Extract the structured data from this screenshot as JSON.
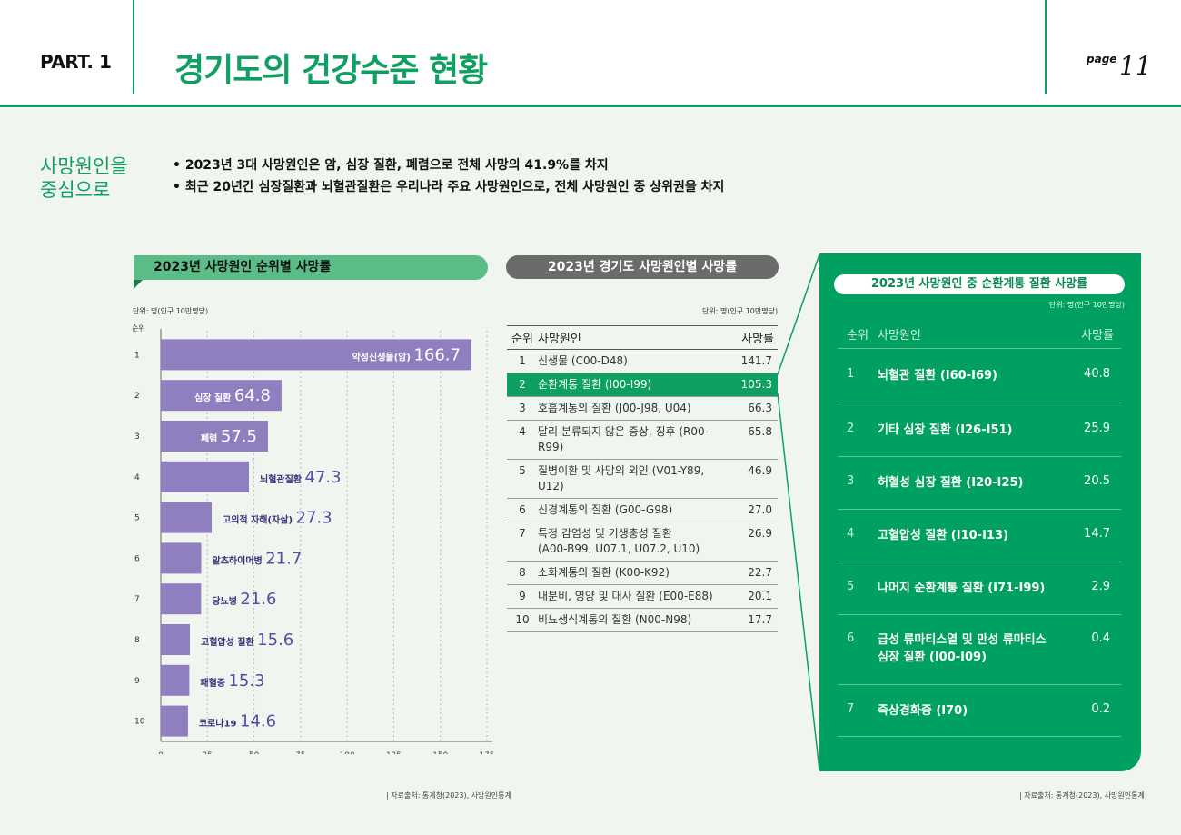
{
  "header": {
    "part": "PART. 1",
    "title": "경기도의 건강수준 현황",
    "page_label": "page",
    "page_number": "11"
  },
  "intro": {
    "heading_line1": "사망원인을",
    "heading_line2": "중심으로",
    "bullets": [
      "2023년 3대 사망원인은 암, 심장 질환, 폐렴으로 전체 사망의 41.9%를 차지",
      "최근 20년간 심장질환과 뇌혈관질환은 우리나라 주요 사망원인으로, 전체 사망원인 중 상위권을 차지"
    ]
  },
  "left_section": {
    "title": "2023년 사망원인 순위별 사망률",
    "unit": "단위: 명(인구 10만명당)",
    "rank_label": "순위"
  },
  "chart_data": {
    "type": "bar",
    "orientation": "horizontal",
    "title": "2023년 사망원인 순위별 사망률",
    "categories": [
      "악성신생물(암)",
      "심장 질환",
      "폐렴",
      "뇌혈관질환",
      "고의적 자해(자살)",
      "알츠하이머병",
      "당뇨병",
      "고혈압성 질환",
      "패혈증",
      "코로나19"
    ],
    "ranks": [
      "1",
      "2",
      "3",
      "4",
      "5",
      "6",
      "7",
      "8",
      "9",
      "10"
    ],
    "values": [
      166.7,
      64.8,
      57.5,
      47.3,
      27.3,
      21.7,
      21.6,
      15.6,
      15.3,
      14.6
    ],
    "xlim": [
      0,
      175
    ],
    "xticks": [
      "0",
      "25",
      "50",
      "75",
      "100",
      "125",
      "150",
      "175"
    ],
    "grid": true,
    "bar_color": "#8f7fbe",
    "label_color": "#5b4aa0"
  },
  "middle_section": {
    "title": "2023년 경기도 사망원인별 사망률",
    "unit": "단위: 명(인구 10만명당)",
    "columns": [
      "순위",
      "사망원인",
      "사망률"
    ],
    "rows": [
      {
        "rank": "1",
        "cause": "신생물 (C00-D48)",
        "value": "141.7"
      },
      {
        "rank": "2",
        "cause": "순환계통 질환 (I00-I99)",
        "value": "105.3"
      },
      {
        "rank": "3",
        "cause": "호흡계통의 질환 (J00-J98, U04)",
        "value": "66.3"
      },
      {
        "rank": "4",
        "cause": "달리 분류되지 않은 증상, 징후 (R00-R99)",
        "value": "65.8"
      },
      {
        "rank": "5",
        "cause": "질병이환 및 사망의 외인 (V01-Y89, U12)",
        "value": "46.9"
      },
      {
        "rank": "6",
        "cause": "신경계통의 질환 (G00-G98)",
        "value": "27.0"
      },
      {
        "rank": "7",
        "cause": "특정 감염성 및 기생충성 질환",
        "cause2": "(A00-B99, U07.1, U07.2, U10)",
        "value": "26.9"
      },
      {
        "rank": "8",
        "cause": "소화계통의 질환 (K00-K92)",
        "value": "22.7"
      },
      {
        "rank": "9",
        "cause": "내분비, 영양 및 대사 질환 (E00-E88)",
        "value": "20.1"
      },
      {
        "rank": "10",
        "cause": "비뇨생식계통의 질환 (N00-N98)",
        "value": "17.7"
      }
    ],
    "highlight_rank": "2",
    "source": "자료출처: 통계청(2023), 사망원인통계"
  },
  "right_section": {
    "title": "2023년 사망원인 중 순환계통 질환 사망률",
    "unit": "단위: 명(인구 10만명당)",
    "columns": [
      "순위",
      "사망원인",
      "사망률"
    ],
    "rows": [
      {
        "rank": "1",
        "cause": "뇌혈관 질환 (I60-I69)",
        "value": "40.8"
      },
      {
        "rank": "2",
        "cause": "기타 심장 질환 (I26-I51)",
        "value": "25.9"
      },
      {
        "rank": "3",
        "cause": "허혈성 심장 질환 (I20-I25)",
        "value": "20.5"
      },
      {
        "rank": "4",
        "cause": "고혈압성 질환 (I10-I13)",
        "value": "14.7"
      },
      {
        "rank": "5",
        "cause": "나머지 순환계통 질환 (I71-I99)",
        "value": "2.9"
      },
      {
        "rank": "6",
        "cause": "급성 류마티스열 및 만성 류마티스",
        "cause2": "심장 질환 (I00-I09)",
        "value": "0.4"
      },
      {
        "rank": "7",
        "cause": "죽상경화증 (I70)",
        "value": "0.2"
      }
    ],
    "source": "자료출처: 통계청(2023), 사망원인통계"
  },
  "colors": {
    "accent_green": "#0ea060",
    "panel_green": "#00a060",
    "bar_purple": "#8f7fbe",
    "gray_banner": "#6b6b6b"
  }
}
